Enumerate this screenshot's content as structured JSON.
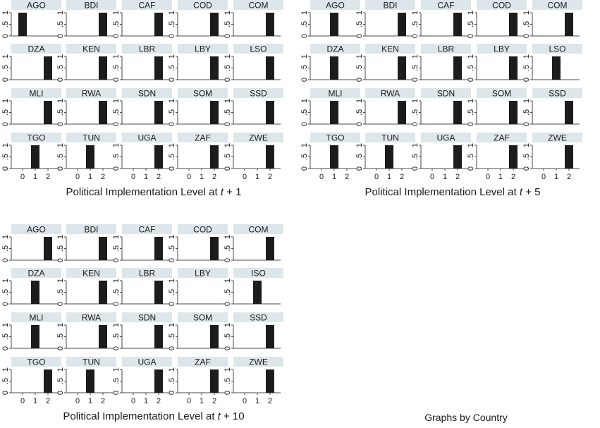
{
  "chart_data": [
    {
      "type": "bar",
      "xlabel_prefix": "Political Implementation Level at ",
      "xlabel_var": "t",
      "xlabel_suffix": " + 1",
      "x_ticks": [
        "0",
        "1",
        "2"
      ],
      "y_ticks": [
        "0",
        ".5",
        "1"
      ],
      "ylim": [
        0,
        1
      ],
      "panels": [
        {
          "name": "AGO",
          "level": 0,
          "value": 1
        },
        {
          "name": "BDI",
          "level": 2,
          "value": 1
        },
        {
          "name": "CAF",
          "level": 2,
          "value": 1
        },
        {
          "name": "COD",
          "level": 2,
          "value": 1
        },
        {
          "name": "COM",
          "level": 2,
          "value": 1
        },
        {
          "name": "DZA",
          "level": 2,
          "value": 1
        },
        {
          "name": "KEN",
          "level": 2,
          "value": 1
        },
        {
          "name": "LBR",
          "level": 2,
          "value": 1
        },
        {
          "name": "LBY",
          "level": 2,
          "value": 1
        },
        {
          "name": "LSO",
          "level": 2,
          "value": 1
        },
        {
          "name": "MLI",
          "level": 2,
          "value": 1
        },
        {
          "name": "RWA",
          "level": 2,
          "value": 1
        },
        {
          "name": "SDN",
          "level": 2,
          "value": 1
        },
        {
          "name": "SOM",
          "level": 2,
          "value": 1
        },
        {
          "name": "SSD",
          "level": 2,
          "value": 1
        },
        {
          "name": "TGO",
          "level": 1,
          "value": 1
        },
        {
          "name": "TUN",
          "level": 1,
          "value": 1
        },
        {
          "name": "UGA",
          "level": 2,
          "value": 1
        },
        {
          "name": "ZAF",
          "level": 2,
          "value": 1
        },
        {
          "name": "ZWE",
          "level": 2,
          "value": 1
        }
      ]
    },
    {
      "type": "bar",
      "xlabel_prefix": "Political Implementation Level at ",
      "xlabel_var": "t",
      "xlabel_suffix": " + 5",
      "x_ticks": [
        "0",
        "1",
        "2"
      ],
      "y_ticks": [
        "0",
        ".5",
        "1"
      ],
      "ylim": [
        0,
        1
      ],
      "panels": [
        {
          "name": "AGO",
          "level": 1,
          "value": 1
        },
        {
          "name": "BDI",
          "level": 2,
          "value": 1
        },
        {
          "name": "CAF",
          "level": 2,
          "value": 1
        },
        {
          "name": "COD",
          "level": 2,
          "value": 1
        },
        {
          "name": "COM",
          "level": 2,
          "value": 1
        },
        {
          "name": "DZA",
          "level": 1,
          "value": 1
        },
        {
          "name": "KEN",
          "level": 2,
          "value": 1
        },
        {
          "name": "LBR",
          "level": 2,
          "value": 1
        },
        {
          "name": "LBY",
          "level": 2,
          "value": 1
        },
        {
          "name": "LSO",
          "level": 1,
          "value": 1
        },
        {
          "name": "MLI",
          "level": 1,
          "value": 1
        },
        {
          "name": "RWA",
          "level": 2,
          "value": 1
        },
        {
          "name": "SDN",
          "level": 2,
          "value": 1
        },
        {
          "name": "SOM",
          "level": 2,
          "value": 1
        },
        {
          "name": "SSD",
          "level": 2,
          "value": 1
        },
        {
          "name": "TGO",
          "level": 1,
          "value": 1
        },
        {
          "name": "TUN",
          "level": 1,
          "value": 1
        },
        {
          "name": "UGA",
          "level": 2,
          "value": 1
        },
        {
          "name": "ZAF",
          "level": 2,
          "value": 1
        },
        {
          "name": "ZWE",
          "level": 2,
          "value": 1
        }
      ]
    },
    {
      "type": "bar",
      "xlabel_prefix": "Political Implementation Level at ",
      "xlabel_var": "t",
      "xlabel_suffix": " + 10",
      "x_ticks": [
        "0",
        "1",
        "2"
      ],
      "y_ticks": [
        "0",
        ".5",
        "1"
      ],
      "ylim": [
        0,
        1
      ],
      "panels": [
        {
          "name": "AGO",
          "level": 2,
          "value": 1
        },
        {
          "name": "BDI",
          "level": 2,
          "value": 1
        },
        {
          "name": "CAF",
          "level": 2,
          "value": 1
        },
        {
          "name": "COD",
          "level": 2,
          "value": 1
        },
        {
          "name": "COM",
          "level": 2,
          "value": 1
        },
        {
          "name": "DZA",
          "level": 1,
          "value": 1
        },
        {
          "name": "KEN",
          "level": 2,
          "value": 1
        },
        {
          "name": "LBR",
          "level": 2,
          "value": 1
        },
        {
          "name": "LBY",
          "level": null,
          "value": 0
        },
        {
          "name": "ISO",
          "level": 1,
          "value": 1
        },
        {
          "name": "MLI",
          "level": 1,
          "value": 1
        },
        {
          "name": "RWA",
          "level": 2,
          "value": 1
        },
        {
          "name": "SDN",
          "level": 2,
          "value": 1
        },
        {
          "name": "SOM",
          "level": 2,
          "value": 1
        },
        {
          "name": "SSD",
          "level": 2,
          "value": 1
        },
        {
          "name": "TGO",
          "level": 2,
          "value": 1
        },
        {
          "name": "TUN",
          "level": 1,
          "value": 1
        },
        {
          "name": "UGA",
          "level": 2,
          "value": 1
        },
        {
          "name": "ZAF",
          "level": 2,
          "value": 1
        },
        {
          "name": "ZWE",
          "level": 2,
          "value": 1
        }
      ]
    }
  ],
  "note": "Graphs by Country",
  "colors": {
    "bar": "#1c1c1c",
    "strip": "#dde6ea",
    "axis": "#4a4a4a"
  }
}
